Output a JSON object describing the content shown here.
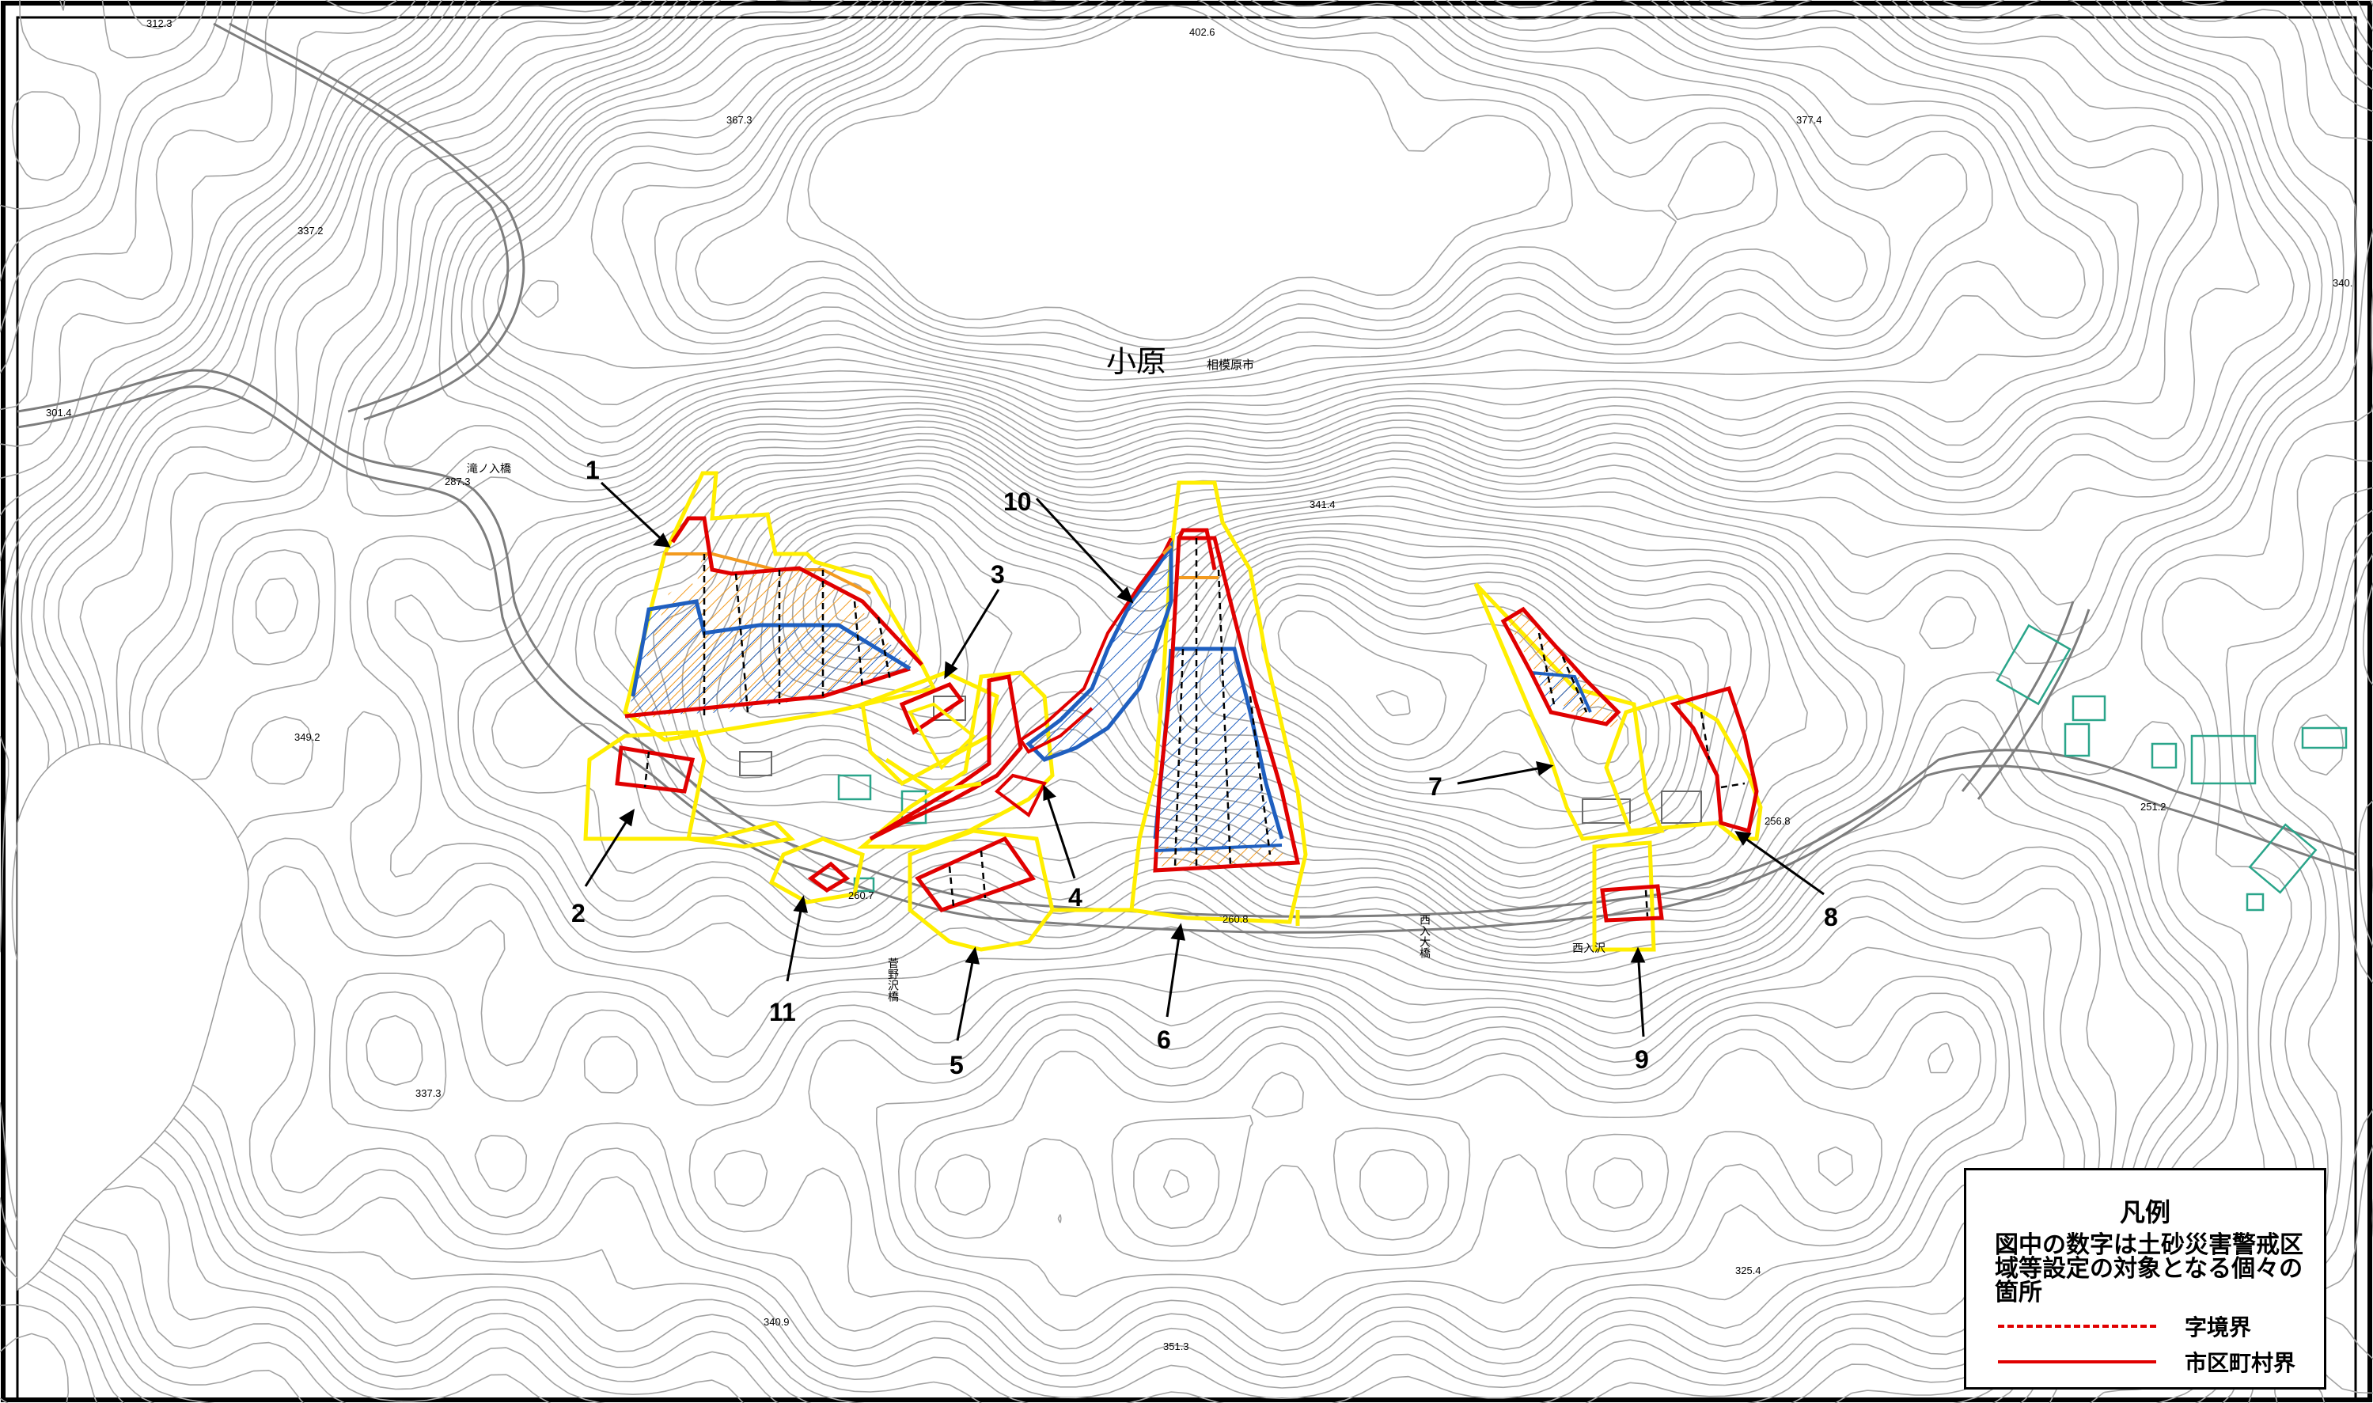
{
  "place_name": "小原",
  "city_name": "相模原市",
  "elevations": [
    "312.3",
    "402.6",
    "367.3",
    "377.4",
    "337.2",
    "340.",
    "301.4",
    "287.3",
    "341.4",
    "349.2",
    "260.7",
    "260.8",
    "256.8",
    "251.2",
    "337.3",
    "340.9",
    "351.3",
    "325.4"
  ],
  "bridges": {
    "taki": "滝ノ入橋",
    "suga": "菅野沢橋",
    "nishi": "西入大橋",
    "nishiirisawa": "西入沢"
  },
  "site_numbers": [
    "1",
    "2",
    "3",
    "4",
    "5",
    "6",
    "7",
    "8",
    "9",
    "10",
    "11"
  ],
  "legend": {
    "title": "凡例",
    "description": "図中の数字は土砂災害警戒区域等設定の対象となる個々の箇所",
    "items": [
      {
        "label": "字境界",
        "style": "dashed",
        "color": "#e00000"
      },
      {
        "label": "市区町村界",
        "style": "solid",
        "color": "#e00000"
      }
    ]
  },
  "colors": {
    "warning_zone": "#ffee00",
    "special_zone": "#d40000",
    "hatch_blue": "#1f5fbf",
    "hatch_orange": "#f39a1e",
    "contour": "#9a9a9a",
    "building": "#2aa58a"
  }
}
